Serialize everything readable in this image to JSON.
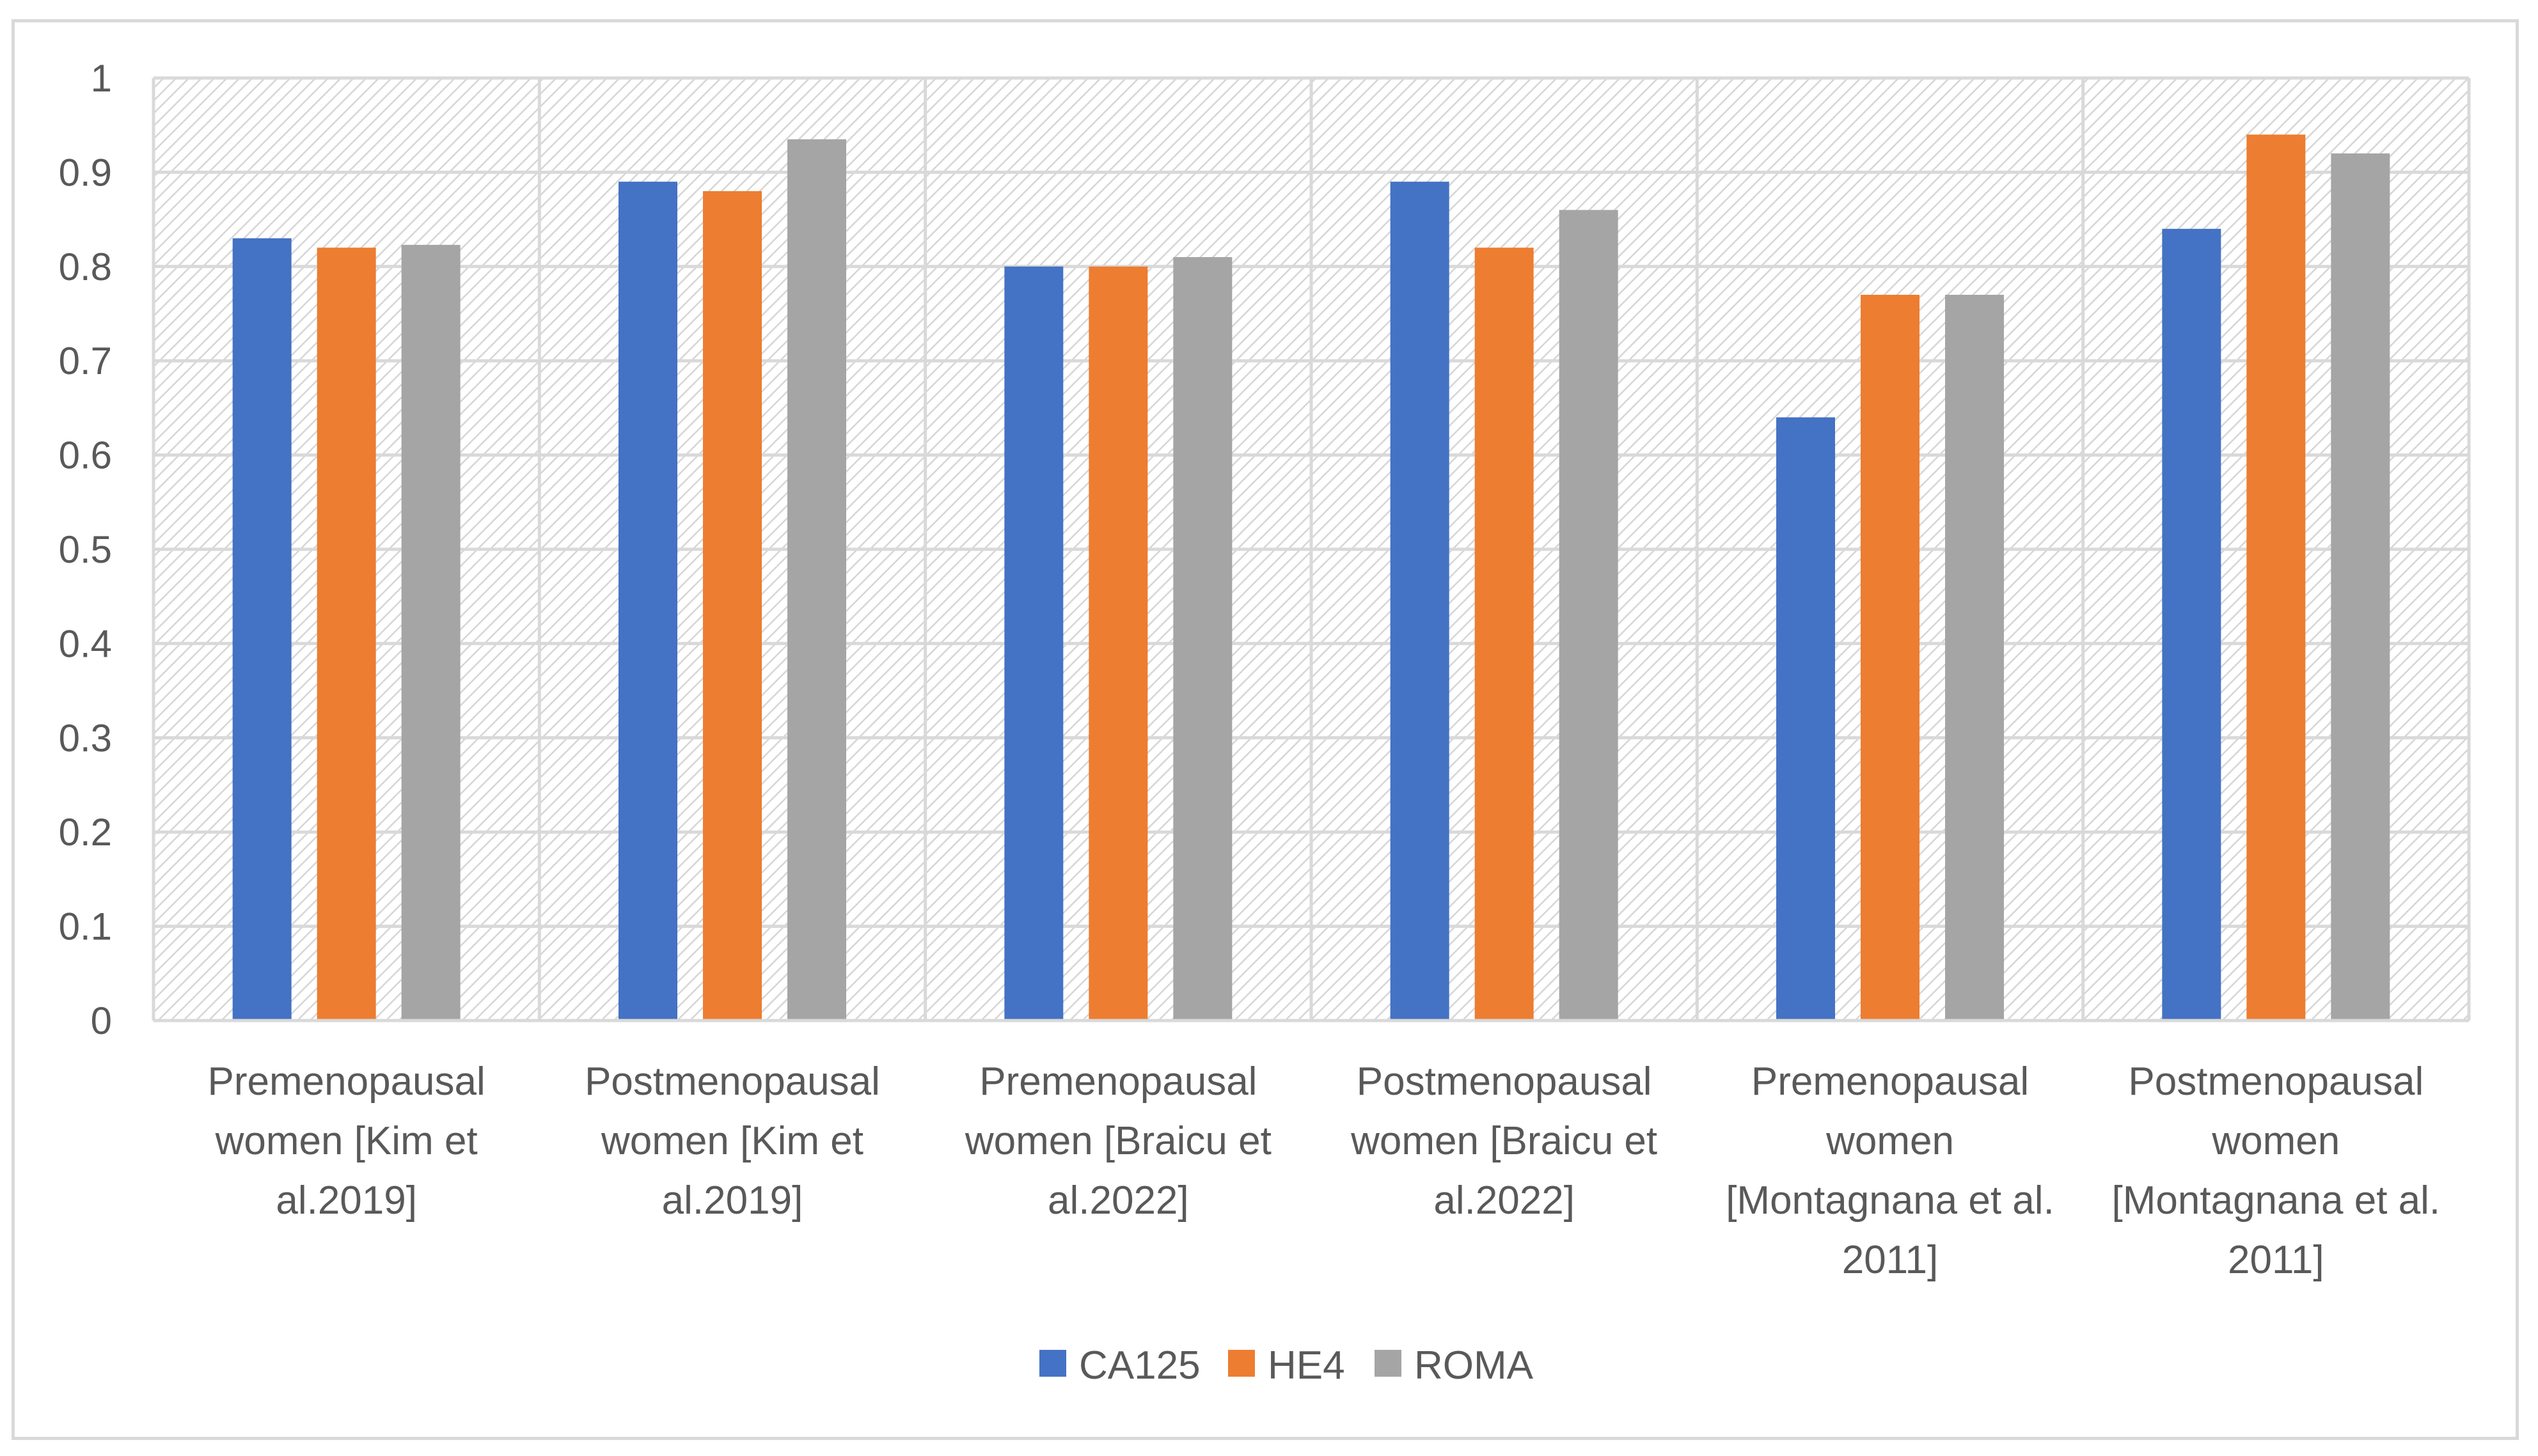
{
  "chart_data": {
    "type": "bar",
    "title": "",
    "xlabel": "",
    "ylabel": "",
    "ylim": [
      0,
      1
    ],
    "yticks": [
      "0",
      "0.1",
      "0.2",
      "0.3",
      "0.4",
      "0.5",
      "0.6",
      "0.7",
      "0.8",
      "0.9",
      "1"
    ],
    "grid": true,
    "legend_position": "bottom",
    "categories": [
      [
        "Premenopausal",
        "women [Kim et",
        "al.2019]"
      ],
      [
        "Postmenopausal",
        "women [Kim et",
        "al.2019]"
      ],
      [
        "Premenopausal",
        "women [Braicu et",
        "al.2022]"
      ],
      [
        "Postmenopausal",
        "women [Braicu et",
        "al.2022]"
      ],
      [
        "Premenopausal",
        "women",
        "[Montagnana et al.",
        "2011]"
      ],
      [
        "Postmenopausal",
        "women",
        "[Montagnana et al.",
        "2011]"
      ]
    ],
    "series": [
      {
        "name": "CA125",
        "color": "#4472c4",
        "values": [
          0.83,
          0.89,
          0.8,
          0.89,
          0.64,
          0.84
        ]
      },
      {
        "name": "HE4",
        "color": "#ed7d31",
        "values": [
          0.82,
          0.88,
          0.8,
          0.82,
          0.77,
          0.94
        ]
      },
      {
        "name": "ROMA",
        "color": "#a5a5a5",
        "values": [
          0.823,
          0.935,
          0.81,
          0.86,
          0.77,
          0.92
        ]
      }
    ]
  }
}
